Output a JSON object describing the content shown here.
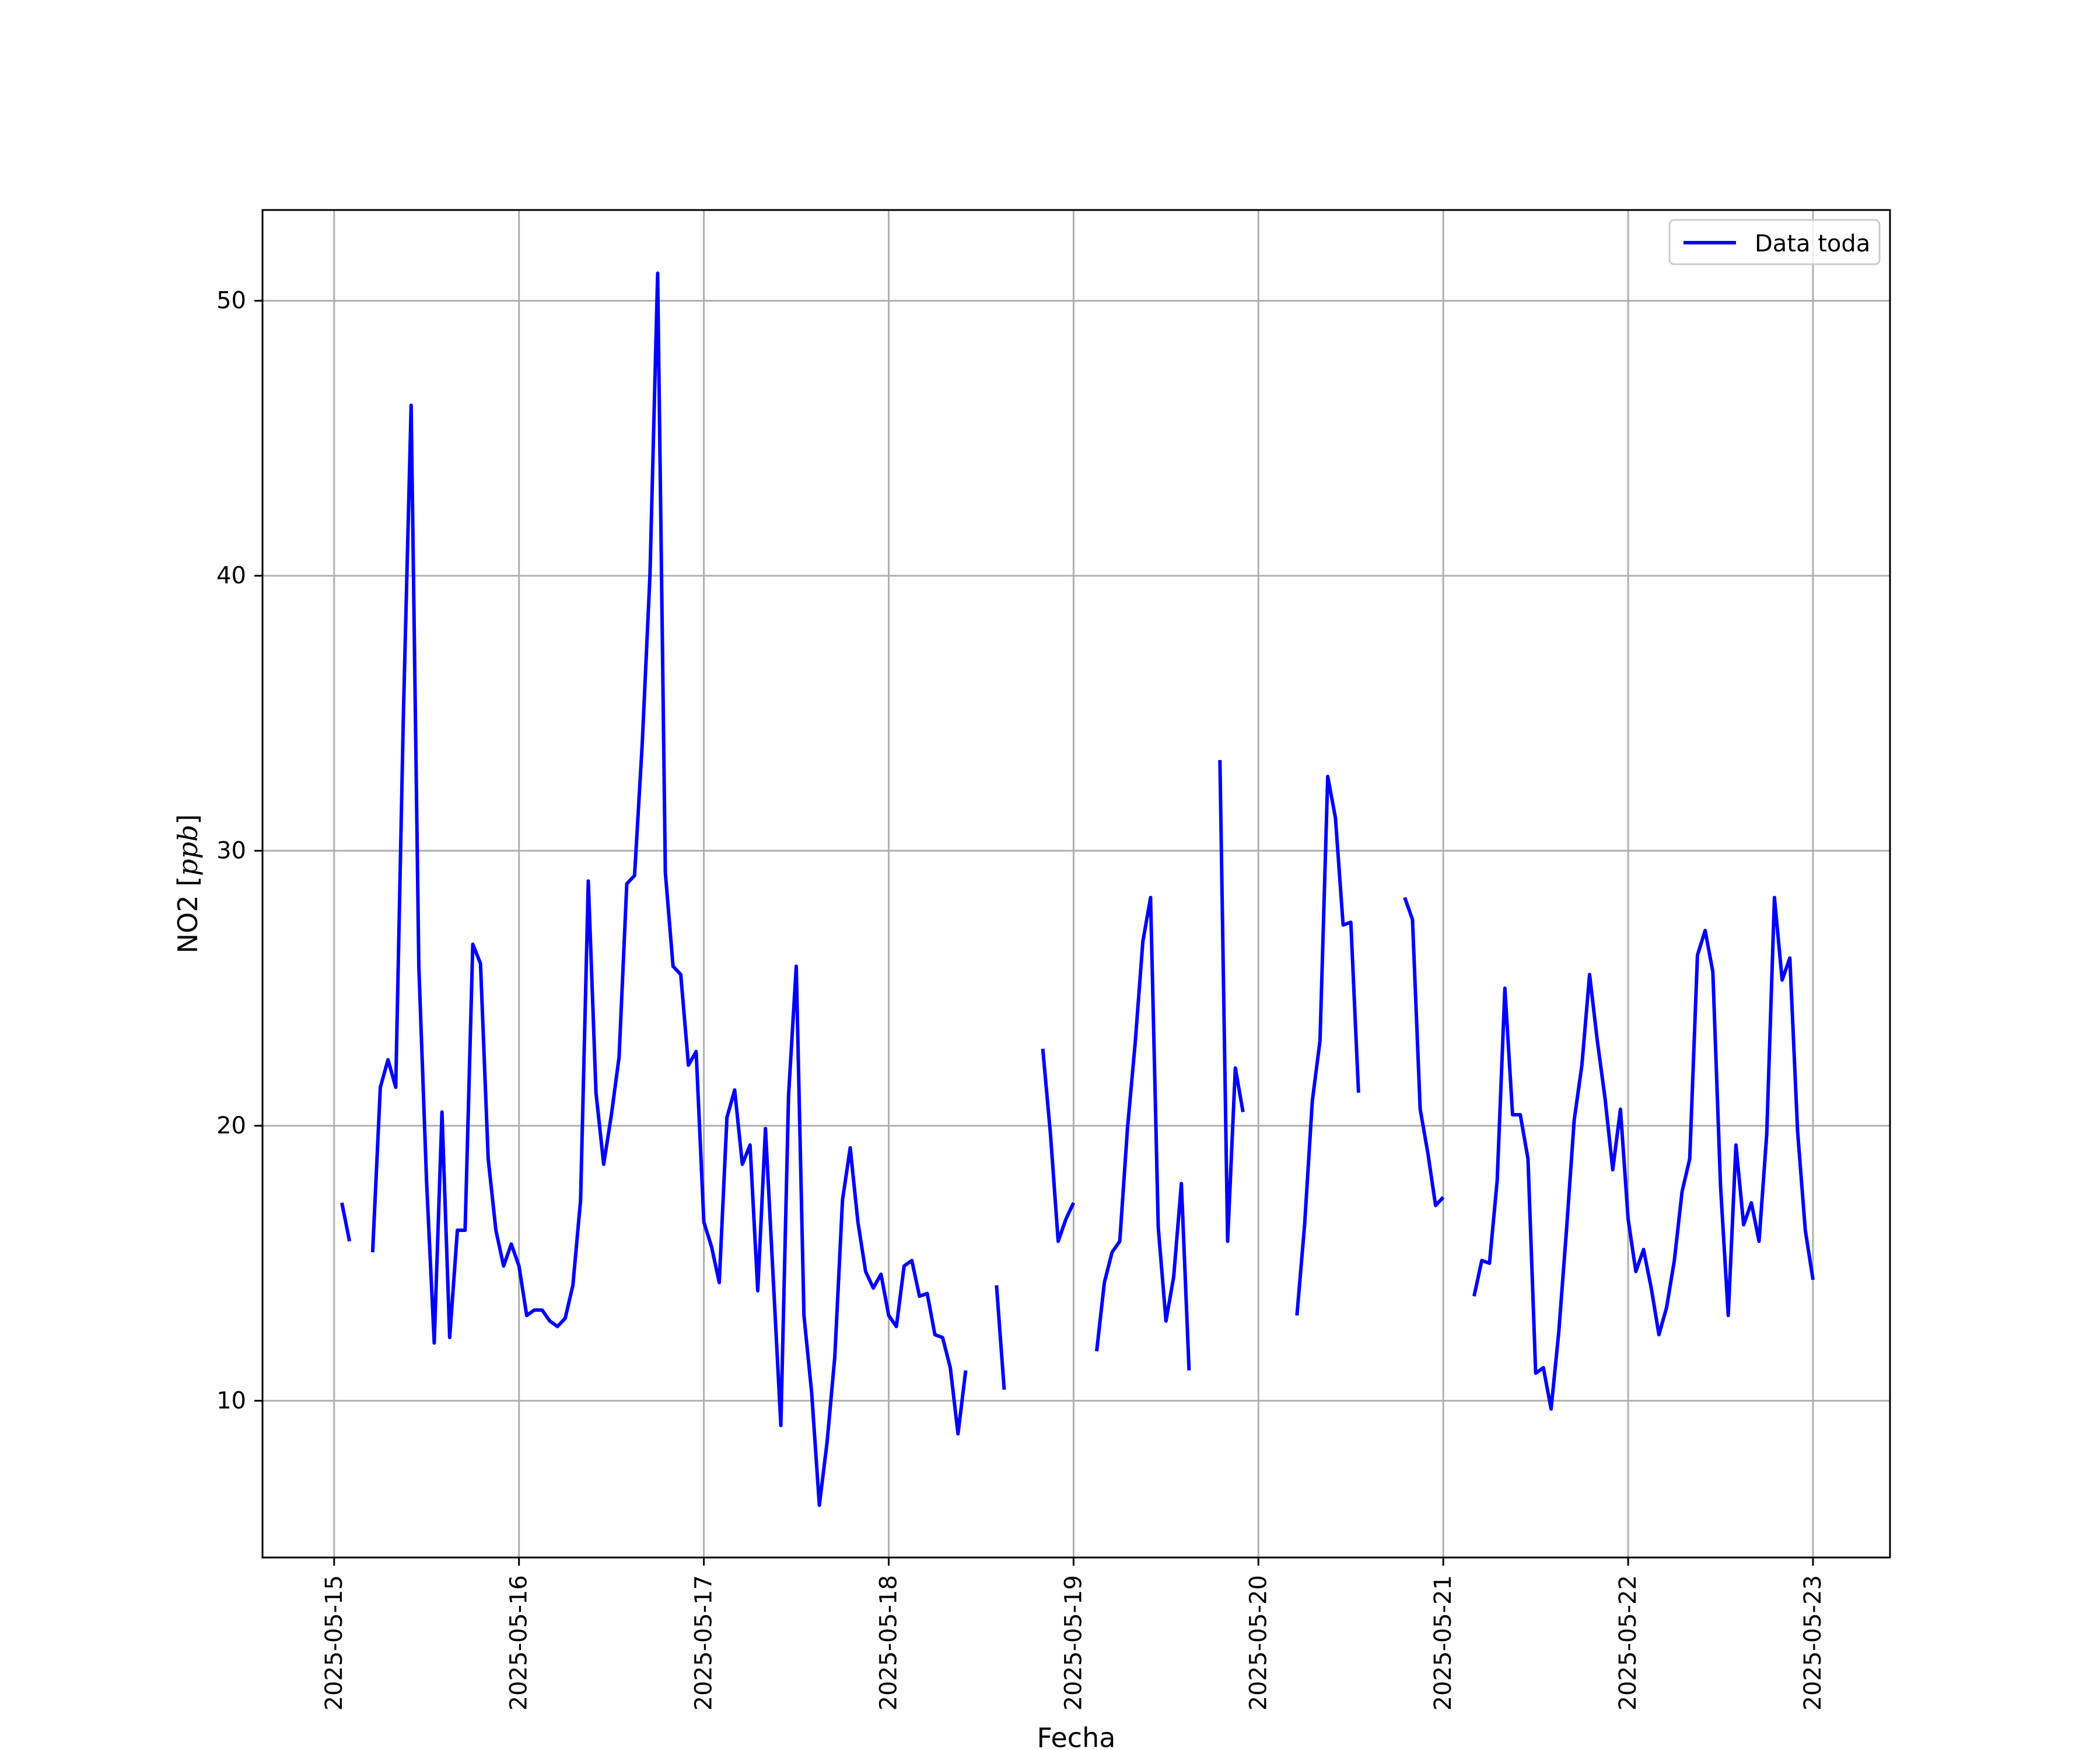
{
  "chart_data": {
    "type": "line",
    "title": "",
    "xlabel": "Fecha",
    "ylabel": "NO2 [ppb]",
    "ylabel_parts": {
      "name": "NO2 [",
      "unit": "ppb",
      "close": "]"
    },
    "xlim": [
      "2025-05-14T14:42",
      "2025-05-23T10:00"
    ],
    "ylim": [
      4.3,
      53.3
    ],
    "x_ticks": [
      "2025-05-15",
      "2025-05-16",
      "2025-05-17",
      "2025-05-18",
      "2025-05-19",
      "2025-05-20",
      "2025-05-21",
      "2025-05-22",
      "2025-05-23"
    ],
    "y_ticks": [
      10,
      20,
      30,
      40,
      50
    ],
    "grid": true,
    "legend_position": "top-right",
    "series": [
      {
        "name": "Data toda",
        "color": "#0000ff",
        "points": [
          [
            "2025-05-15T01:00",
            17.2
          ],
          [
            "2025-05-15T02:00",
            15.8
          ],
          [
            "2025-05-15T03:00",
            null
          ],
          [
            "2025-05-15T04:00",
            null
          ],
          [
            "2025-05-15T05:00",
            15.4
          ],
          [
            "2025-05-15T06:00",
            21.4
          ],
          [
            "2025-05-15T07:00",
            22.4
          ],
          [
            "2025-05-15T08:00",
            21.4
          ],
          [
            "2025-05-15T09:00",
            35.0
          ],
          [
            "2025-05-15T10:00",
            46.2
          ],
          [
            "2025-05-15T11:00",
            25.8
          ],
          [
            "2025-05-15T12:00",
            18.0
          ],
          [
            "2025-05-15T13:00",
            12.1
          ],
          [
            "2025-05-15T14:00",
            20.5
          ],
          [
            "2025-05-15T15:00",
            12.3
          ],
          [
            "2025-05-15T16:00",
            16.2
          ],
          [
            "2025-05-15T17:00",
            16.2
          ],
          [
            "2025-05-15T18:00",
            26.6
          ],
          [
            "2025-05-15T19:00",
            25.9
          ],
          [
            "2025-05-15T20:00",
            18.8
          ],
          [
            "2025-05-15T21:00",
            16.2
          ],
          [
            "2025-05-15T22:00",
            14.9
          ],
          [
            "2025-05-15T23:00",
            15.7
          ],
          [
            "2025-05-16T00:00",
            14.9
          ],
          [
            "2025-05-16T01:00",
            13.1
          ],
          [
            "2025-05-16T02:00",
            13.3
          ],
          [
            "2025-05-16T03:00",
            13.3
          ],
          [
            "2025-05-16T04:00",
            12.9
          ],
          [
            "2025-05-16T05:00",
            12.7
          ],
          [
            "2025-05-16T06:00",
            13.0
          ],
          [
            "2025-05-16T07:00",
            14.2
          ],
          [
            "2025-05-16T08:00",
            17.3
          ],
          [
            "2025-05-16T09:00",
            28.9
          ],
          [
            "2025-05-16T10:00",
            21.2
          ],
          [
            "2025-05-16T11:00",
            18.6
          ],
          [
            "2025-05-16T12:00",
            20.4
          ],
          [
            "2025-05-16T13:00",
            22.5
          ],
          [
            "2025-05-16T14:00",
            28.8
          ],
          [
            "2025-05-16T15:00",
            29.1
          ],
          [
            "2025-05-16T16:00",
            33.9
          ],
          [
            "2025-05-16T17:00",
            40.0
          ],
          [
            "2025-05-16T18:00",
            51.0
          ],
          [
            "2025-05-16T19:00",
            29.2
          ],
          [
            "2025-05-16T20:00",
            25.8
          ],
          [
            "2025-05-16T21:00",
            25.5
          ],
          [
            "2025-05-16T22:00",
            22.2
          ],
          [
            "2025-05-16T23:00",
            22.7
          ],
          [
            "2025-05-17T00:00",
            16.5
          ],
          [
            "2025-05-17T01:00",
            15.6
          ],
          [
            "2025-05-17T02:00",
            14.3
          ],
          [
            "2025-05-17T03:00",
            20.3
          ],
          [
            "2025-05-17T04:00",
            21.3
          ],
          [
            "2025-05-17T05:00",
            18.6
          ],
          [
            "2025-05-17T06:00",
            19.3
          ],
          [
            "2025-05-17T07:00",
            14.0
          ],
          [
            "2025-05-17T08:00",
            19.9
          ],
          [
            "2025-05-17T09:00",
            14.5
          ],
          [
            "2025-05-17T10:00",
            9.1
          ],
          [
            "2025-05-17T11:00",
            21.1
          ],
          [
            "2025-05-17T12:00",
            25.8
          ],
          [
            "2025-05-17T13:00",
            13.1
          ],
          [
            "2025-05-17T14:00",
            10.3
          ],
          [
            "2025-05-17T15:00",
            6.2
          ],
          [
            "2025-05-17T16:00",
            8.5
          ],
          [
            "2025-05-17T17:00",
            11.6
          ],
          [
            "2025-05-17T18:00",
            17.3
          ],
          [
            "2025-05-17T19:00",
            19.2
          ],
          [
            "2025-05-17T20:00",
            16.5
          ],
          [
            "2025-05-17T21:00",
            14.7
          ],
          [
            "2025-05-17T22:00",
            14.1
          ],
          [
            "2025-05-17T23:00",
            14.6
          ],
          [
            "2025-05-18T00:00",
            13.1
          ],
          [
            "2025-05-18T01:00",
            12.7
          ],
          [
            "2025-05-18T02:00",
            14.9
          ],
          [
            "2025-05-18T03:00",
            15.1
          ],
          [
            "2025-05-18T04:00",
            13.8
          ],
          [
            "2025-05-18T05:00",
            13.9
          ],
          [
            "2025-05-18T06:00",
            12.4
          ],
          [
            "2025-05-18T07:00",
            12.3
          ],
          [
            "2025-05-18T08:00",
            11.2
          ],
          [
            "2025-05-18T09:00",
            8.8
          ],
          [
            "2025-05-18T10:00",
            11.1
          ],
          [
            "2025-05-18T11:00",
            null
          ],
          [
            "2025-05-18T12:00",
            null
          ],
          [
            "2025-05-18T13:00",
            null
          ],
          [
            "2025-05-18T14:00",
            14.2
          ],
          [
            "2025-05-18T15:00",
            10.4
          ],
          [
            "2025-05-18T16:00",
            null
          ],
          [
            "2025-05-18T17:00",
            null
          ],
          [
            "2025-05-18T18:00",
            null
          ],
          [
            "2025-05-18T19:00",
            null
          ],
          [
            "2025-05-18T20:00",
            22.8
          ],
          [
            "2025-05-18T21:00",
            19.7
          ],
          [
            "2025-05-18T22:00",
            15.8
          ],
          [
            "2025-05-18T23:00",
            16.6
          ],
          [
            "2025-05-19T00:00",
            17.2
          ],
          [
            "2025-05-19T01:00",
            null
          ],
          [
            "2025-05-19T02:00",
            null
          ],
          [
            "2025-05-19T03:00",
            11.8
          ],
          [
            "2025-05-19T04:00",
            14.3
          ],
          [
            "2025-05-19T05:00",
            15.4
          ],
          [
            "2025-05-19T06:00",
            15.8
          ],
          [
            "2025-05-19T07:00",
            19.9
          ],
          [
            "2025-05-19T08:00",
            23.0
          ],
          [
            "2025-05-19T09:00",
            26.7
          ],
          [
            "2025-05-19T10:00",
            28.3
          ],
          [
            "2025-05-19T11:00",
            16.3
          ],
          [
            "2025-05-19T12:00",
            12.9
          ],
          [
            "2025-05-19T13:00",
            14.5
          ],
          [
            "2025-05-19T14:00",
            17.9
          ],
          [
            "2025-05-19T15:00",
            11.1
          ],
          [
            "2025-05-19T16:00",
            null
          ],
          [
            "2025-05-19T17:00",
            null
          ],
          [
            "2025-05-19T18:00",
            null
          ],
          [
            "2025-05-19T19:00",
            33.3
          ],
          [
            "2025-05-19T20:00",
            15.8
          ],
          [
            "2025-05-19T21:00",
            22.1
          ],
          [
            "2025-05-19T22:00",
            20.5
          ],
          [
            "2025-05-19T23:00",
            null
          ],
          [
            "2025-05-20T00:00",
            null
          ],
          [
            "2025-05-20T01:00",
            null
          ],
          [
            "2025-05-20T02:00",
            null
          ],
          [
            "2025-05-20T03:00",
            null
          ],
          [
            "2025-05-20T04:00",
            null
          ],
          [
            "2025-05-20T05:00",
            13.1
          ],
          [
            "2025-05-20T06:00",
            16.4
          ],
          [
            "2025-05-20T07:00",
            20.9
          ],
          [
            "2025-05-20T08:00",
            23.1
          ],
          [
            "2025-05-20T09:00",
            32.7
          ],
          [
            "2025-05-20T10:00",
            31.2
          ],
          [
            "2025-05-20T11:00",
            27.3
          ],
          [
            "2025-05-20T12:00",
            27.4
          ],
          [
            "2025-05-20T13:00",
            21.2
          ],
          [
            "2025-05-20T14:00",
            null
          ],
          [
            "2025-05-20T15:00",
            null
          ],
          [
            "2025-05-20T16:00",
            null
          ],
          [
            "2025-05-20T17:00",
            null
          ],
          [
            "2025-05-20T18:00",
            null
          ],
          [
            "2025-05-20T19:00",
            28.3
          ],
          [
            "2025-05-20T20:00",
            27.5
          ],
          [
            "2025-05-20T21:00",
            20.6
          ],
          [
            "2025-05-20T22:00",
            19.0
          ],
          [
            "2025-05-20T23:00",
            17.1
          ],
          [
            "2025-05-21T00:00",
            17.4
          ],
          [
            "2025-05-21T01:00",
            null
          ],
          [
            "2025-05-21T02:00",
            null
          ],
          [
            "2025-05-21T03:00",
            null
          ],
          [
            "2025-05-21T04:00",
            13.8
          ],
          [
            "2025-05-21T05:00",
            15.1
          ],
          [
            "2025-05-21T06:00",
            15.0
          ],
          [
            "2025-05-21T07:00",
            18.0
          ],
          [
            "2025-05-21T08:00",
            25.0
          ],
          [
            "2025-05-21T09:00",
            20.4
          ],
          [
            "2025-05-21T10:00",
            20.4
          ],
          [
            "2025-05-21T11:00",
            18.8
          ],
          [
            "2025-05-21T12:00",
            11.0
          ],
          [
            "2025-05-21T13:00",
            11.2
          ],
          [
            "2025-05-21T14:00",
            9.7
          ],
          [
            "2025-05-21T15:00",
            12.5
          ],
          [
            "2025-05-21T16:00",
            16.2
          ],
          [
            "2025-05-21T17:00",
            20.2
          ],
          [
            "2025-05-21T18:00",
            22.2
          ],
          [
            "2025-05-21T19:00",
            25.5
          ],
          [
            "2025-05-21T20:00",
            23.1
          ],
          [
            "2025-05-21T21:00",
            21.0
          ],
          [
            "2025-05-21T22:00",
            18.4
          ],
          [
            "2025-05-21T23:00",
            20.6
          ],
          [
            "2025-05-22T00:00",
            16.6
          ],
          [
            "2025-05-22T01:00",
            14.7
          ],
          [
            "2025-05-22T02:00",
            15.5
          ],
          [
            "2025-05-22T03:00",
            14.1
          ],
          [
            "2025-05-22T04:00",
            12.4
          ],
          [
            "2025-05-22T05:00",
            13.4
          ],
          [
            "2025-05-22T06:00",
            15.1
          ],
          [
            "2025-05-22T07:00",
            17.6
          ],
          [
            "2025-05-22T08:00",
            18.8
          ],
          [
            "2025-05-22T09:00",
            26.2
          ],
          [
            "2025-05-22T10:00",
            27.1
          ],
          [
            "2025-05-22T11:00",
            25.6
          ],
          [
            "2025-05-22T12:00",
            17.8
          ],
          [
            "2025-05-22T13:00",
            13.1
          ],
          [
            "2025-05-22T14:00",
            19.3
          ],
          [
            "2025-05-22T15:00",
            16.4
          ],
          [
            "2025-05-22T16:00",
            17.2
          ],
          [
            "2025-05-22T17:00",
            15.8
          ],
          [
            "2025-05-22T18:00",
            19.7
          ],
          [
            "2025-05-22T19:00",
            28.3
          ],
          [
            "2025-05-22T20:00",
            25.3
          ],
          [
            "2025-05-22T21:00",
            26.1
          ],
          [
            "2025-05-22T22:00",
            19.8
          ],
          [
            "2025-05-22T23:00",
            16.2
          ],
          [
            "2025-05-23T00:00",
            14.4
          ]
        ]
      }
    ]
  }
}
